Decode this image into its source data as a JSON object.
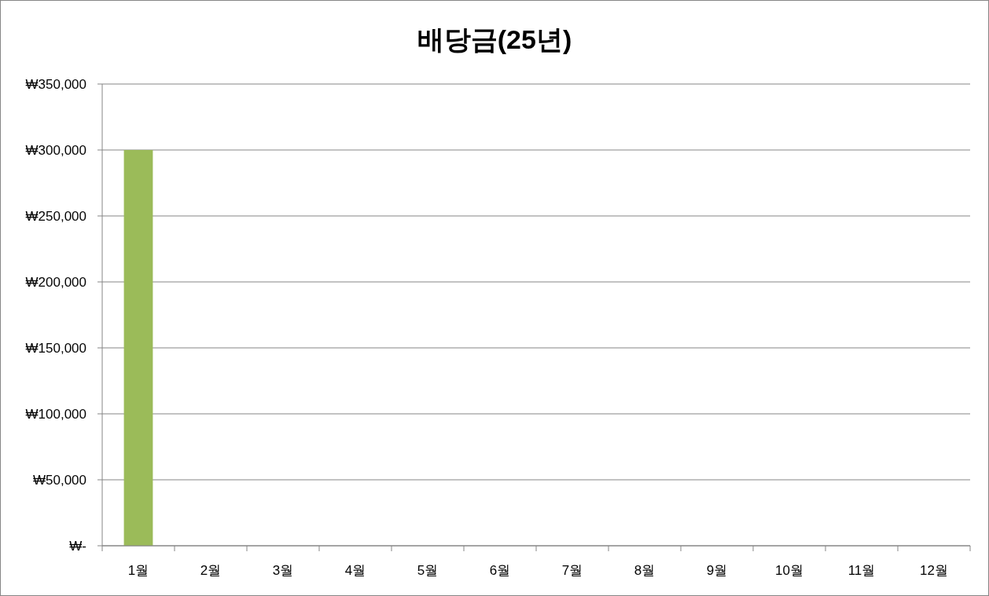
{
  "chart_data": {
    "type": "bar",
    "title": "배당금(25년)",
    "categories": [
      "1월",
      "2월",
      "3월",
      "4월",
      "5월",
      "6월",
      "7월",
      "8월",
      "9월",
      "10월",
      "11월",
      "12월"
    ],
    "series": [
      {
        "color": "#9bbb59",
        "values": [
          300000,
          null,
          null,
          null,
          null,
          null,
          null,
          null,
          null,
          null,
          null,
          null
        ]
      }
    ],
    "ylim": [
      0,
      350000
    ],
    "yticks": [
      {
        "value": 0,
        "label": "₩-"
      },
      {
        "value": 50000,
        "label": "₩50,000"
      },
      {
        "value": 100000,
        "label": "₩100,000"
      },
      {
        "value": 150000,
        "label": "₩150,000"
      },
      {
        "value": 200000,
        "label": "₩200,000"
      },
      {
        "value": 250000,
        "label": "₩250,000"
      },
      {
        "value": 300000,
        "label": "₩300,000"
      },
      {
        "value": 350000,
        "label": "₩350,000"
      }
    ],
    "grid": "y"
  }
}
